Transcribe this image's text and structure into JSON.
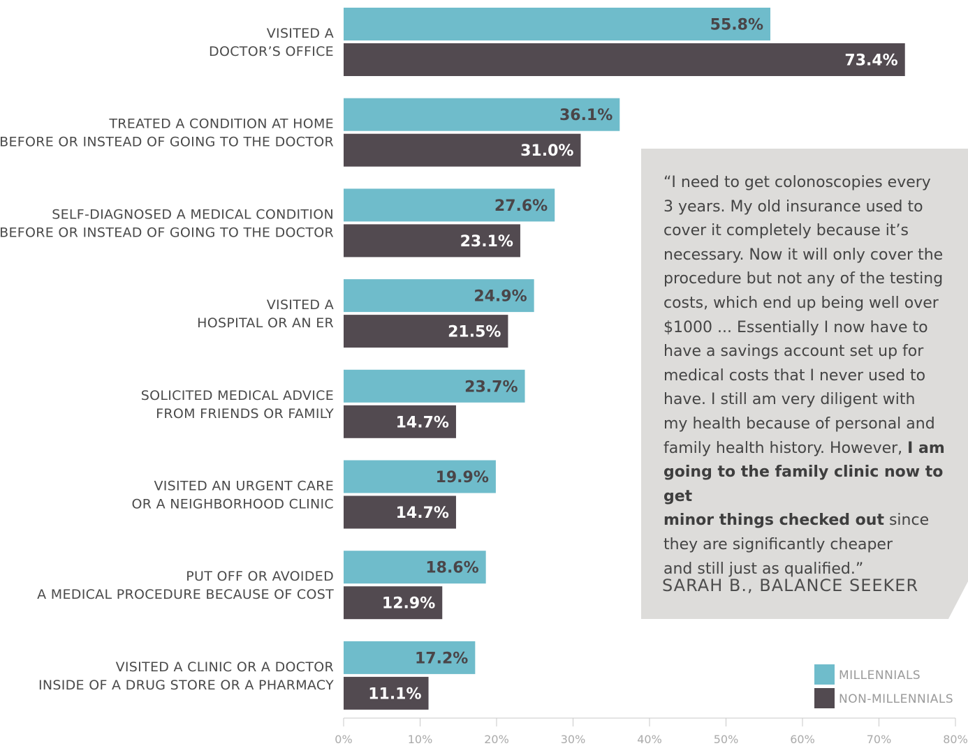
{
  "chart_data": {
    "type": "bar",
    "orientation": "horizontal",
    "categories": [
      [
        "VISITED A",
        "DOCTOR’S OFFICE"
      ],
      [
        "TREATED A CONDITION AT HOME",
        "BEFORE OR INSTEAD OF GOING TO THE DOCTOR"
      ],
      [
        "SELF-DIAGNOSED A MEDICAL CONDITION",
        "BEFORE OR INSTEAD OF GOING TO THE DOCTOR"
      ],
      [
        "VISITED A",
        "HOSPITAL OR AN ER"
      ],
      [
        "SOLICITED MEDICAL ADVICE",
        "FROM FRIENDS OR FAMILY"
      ],
      [
        "VISITED AN URGENT CARE",
        "OR A NEIGHBORHOOD CLINIC"
      ],
      [
        "PUT OFF OR AVOIDED",
        "A MEDICAL PROCEDURE BECAUSE OF COST"
      ],
      [
        "VISITED A CLINIC OR A DOCTOR",
        "INSIDE OF A DRUG STORE OR A PHARMACY"
      ]
    ],
    "series": [
      {
        "name": "MILLENNIALS",
        "color": "#6fbccb",
        "label_color": "#4a4548",
        "values": [
          55.8,
          36.1,
          27.6,
          24.9,
          23.7,
          19.9,
          18.6,
          17.2
        ],
        "labels": [
          "55.8%",
          "36.1%",
          "27.6%",
          "24.9%",
          "23.7%",
          "19.9%",
          "18.6%",
          "17.2%"
        ]
      },
      {
        "name": "NON-MILLENNIALS",
        "color": "#524a50",
        "label_color": "#ffffff",
        "values": [
          73.4,
          31.0,
          23.1,
          21.5,
          14.7,
          14.7,
          12.9,
          11.1
        ],
        "labels": [
          "73.4%",
          "31.0%",
          "23.1%",
          "21.5%",
          "14.7%",
          "14.7%",
          "12.9%",
          "11.1%"
        ]
      }
    ],
    "xlim": [
      0,
      80
    ],
    "xticks": [
      "0%",
      "10%",
      "20%",
      "30%",
      "40%",
      "50%",
      "60%",
      "70%",
      "80%"
    ],
    "grid": false,
    "legend_position": "bottom-right"
  },
  "quote": {
    "lines": [
      [
        {
          "t": "“I need to get colonoscopies every"
        }
      ],
      [
        {
          "t": "3 years. My old insurance used to"
        }
      ],
      [
        {
          "t": "cover it completely because it’s"
        }
      ],
      [
        {
          "t": "necessary. Now it will only cover the"
        }
      ],
      [
        {
          "t": "procedure but not any of the testing"
        }
      ],
      [
        {
          "t": "costs, which end up being well over"
        }
      ],
      [
        {
          "t": "$1000 ... Essentially I now have to"
        }
      ],
      [
        {
          "t": "have a savings account set up for"
        }
      ],
      [
        {
          "t": "medical costs that I never used to"
        }
      ],
      [
        {
          "t": "have. I still am very diligent with"
        }
      ],
      [
        {
          "t": "my health because of personal and"
        }
      ],
      [
        {
          "t": "family health history. However, "
        },
        {
          "t": "I am",
          "b": true
        }
      ],
      [
        {
          "t": "going to the family clinic now to get",
          "b": true
        }
      ],
      [
        {
          "t": "minor things checked out",
          "b": true
        },
        {
          "t": " since"
        }
      ],
      [
        {
          "t": "they are significantly cheaper"
        }
      ],
      [
        {
          "t": "and still just as qualified.”"
        }
      ]
    ],
    "attribution": "SARAH B., BALANCE SEEKER"
  }
}
